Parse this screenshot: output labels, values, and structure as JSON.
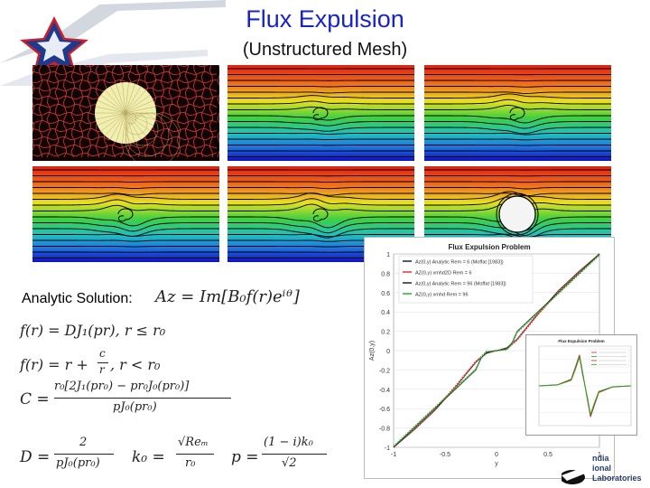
{
  "title": "Flux Expulsion",
  "subtitle": "(Unstructured Mesh)",
  "analytic_label": "Analytic Solution:",
  "equations": {
    "az": "Az = Im[B₀f(r)eⁱᶿ]",
    "f_inner": "f(r) = DJ₁(pr), r ≤ r₀",
    "f_outer_a": "f(r) = r +",
    "f_outer_num": "c",
    "f_outer_den": "r",
    "f_outer_b": ", r < r₀",
    "c_lhs": "C =",
    "c_num": "r₀[2J₁(pr₀) − pr₀J₀(pr₀)]",
    "c_den": "pJ₀(pr₀)",
    "d_lhs": "D =",
    "d_num": "2",
    "d_den": "pJ₀(pr₀)",
    "k_lhs": "k₀ =",
    "k_num": "√Reₘ",
    "k_den": "r₀",
    "p_lhs": "p =",
    "p_num": "(1 − i)k₀",
    "p_den": "√2"
  },
  "panels": [
    {
      "name": "mesh-panel",
      "kind": "mesh"
    },
    {
      "name": "field-panel-1",
      "kind": "field",
      "curl": 0.5
    },
    {
      "name": "field-panel-2",
      "kind": "field",
      "curl": 0.8
    },
    {
      "name": "field-panel-3",
      "kind": "field",
      "curl": 1.0
    },
    {
      "name": "field-panel-4",
      "kind": "field",
      "curl": 1.2
    },
    {
      "name": "field-panel-5",
      "kind": "field",
      "curl": 1.5
    }
  ],
  "logo_text": [
    "ndia",
    "ional",
    "Laboratories"
  ],
  "chart_data": [
    {
      "type": "line",
      "title": "Flux Expulsion Problem",
      "xlabel": "y",
      "ylabel": "Az(0,y)",
      "xlim": [
        -1,
        1
      ],
      "ylim": [
        -1,
        1
      ],
      "xticks": [
        "-1",
        "-0.5",
        "0",
        "0.5",
        "1"
      ],
      "yticks": [
        "-1",
        "-0.8",
        "-0.6",
        "-0.4",
        "-0.2",
        "0",
        "0.2",
        "0.4",
        "0.6",
        "0.8",
        "1"
      ],
      "legend": [
        "Az(0,y) Analytic Rem = 6 (Moffat [1983])",
        "AZ(0,y) xmhd2D Rem = 6",
        "Az(0,y) Analytic Rem = 96 (Moffat [1983])",
        "AZ(0,y) xmhd Rem = 96"
      ],
      "series": [
        {
          "name": "Az(0,y) Analytic Rem = 6 (Moffat [1983])",
          "color": "#222222",
          "x": [
            -1,
            -0.8,
            -0.6,
            -0.4,
            -0.2,
            -0.1,
            0,
            0.1,
            0.2,
            0.4,
            0.6,
            0.8,
            1
          ],
          "y": [
            -1,
            -0.82,
            -0.62,
            -0.38,
            -0.12,
            -0.03,
            0,
            0.03,
            0.12,
            0.38,
            0.62,
            0.82,
            1
          ]
        },
        {
          "name": "AZ(0,y) xmhd2D Rem = 6",
          "color": "#e53030",
          "x": [
            -1,
            -0.8,
            -0.6,
            -0.4,
            -0.2,
            -0.1,
            0,
            0.1,
            0.2,
            0.4,
            0.6,
            0.8,
            1
          ],
          "y": [
            -1,
            -0.81,
            -0.61,
            -0.37,
            -0.11,
            -0.02,
            0,
            0.02,
            0.11,
            0.37,
            0.61,
            0.81,
            1
          ]
        },
        {
          "name": "Az(0,y) Analytic Rem = 96 (Moffat [1983])",
          "color": "#222222",
          "x": [
            -1,
            -0.8,
            -0.6,
            -0.4,
            -0.2,
            -0.15,
            -0.1,
            0,
            0.1,
            0.15,
            0.2,
            0.4,
            0.6,
            0.8,
            1
          ],
          "y": [
            -1,
            -0.8,
            -0.6,
            -0.4,
            -0.2,
            -0.08,
            -0.02,
            0,
            0.02,
            0.08,
            0.2,
            0.4,
            0.6,
            0.8,
            1
          ]
        },
        {
          "name": "AZ(0,y) xmhd Rem = 96",
          "color": "#33aa33",
          "x": [
            -1,
            -0.8,
            -0.6,
            -0.4,
            -0.2,
            -0.15,
            -0.1,
            0,
            0.1,
            0.15,
            0.2,
            0.4,
            0.6,
            0.8,
            1
          ],
          "y": [
            -0.99,
            -0.79,
            -0.59,
            -0.39,
            -0.19,
            -0.07,
            -0.01,
            0,
            0.01,
            0.07,
            0.19,
            0.39,
            0.59,
            0.79,
            0.99
          ]
        }
      ]
    },
    {
      "type": "line",
      "title": "Flux Expulsion Problem",
      "xlim": [
        -1,
        1
      ],
      "ylim": [
        -0.18,
        0.18
      ],
      "series": [
        {
          "name": "",
          "color": "#cc2222",
          "x": [
            -1,
            -0.6,
            -0.3,
            -0.2,
            -0.12,
            -0.05,
            0,
            0.05,
            0.12,
            0.2,
            0.3,
            0.6,
            1
          ],
          "y": [
            0,
            0.005,
            0.03,
            0.09,
            0.14,
            0.06,
            0,
            -0.06,
            -0.14,
            -0.09,
            -0.03,
            -0.005,
            0
          ]
        },
        {
          "name": "",
          "color": "#22aa22",
          "x": [
            -1,
            -0.6,
            -0.3,
            -0.2,
            -0.12,
            -0.05,
            0,
            0.05,
            0.12,
            0.2,
            0.3,
            0.6,
            1
          ],
          "y": [
            0,
            0.004,
            0.025,
            0.08,
            0.13,
            0.05,
            0,
            -0.05,
            -0.13,
            -0.08,
            -0.025,
            -0.004,
            0
          ]
        }
      ]
    }
  ]
}
